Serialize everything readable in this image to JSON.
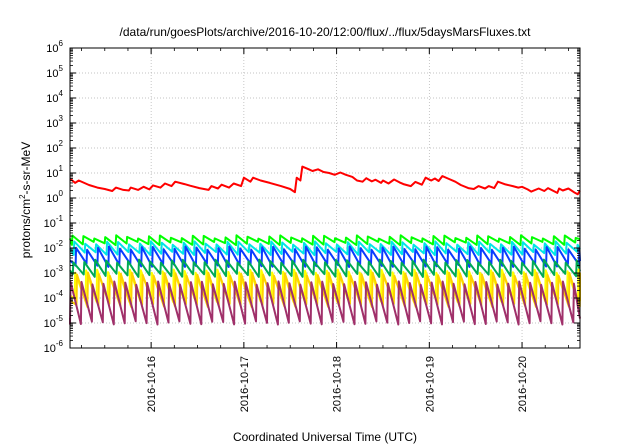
{
  "chart_data": {
    "type": "line",
    "title": "/data/run/goesPlots/archive/2016-10-20/12:00/flux/../flux/5daysMarsFluxes.txt",
    "xlabel": "Coordinated Universal Time (UTC)",
    "ylabel": {
      "base": "protons/cm",
      "sup": "2",
      "rest": "-s-sr-MeV"
    },
    "y_scale": "log",
    "ylim": [
      1e-06,
      1000000.0
    ],
    "y_ticks": [
      {
        "value": 1e-06,
        "base": "10",
        "exp": "-6"
      },
      {
        "value": 1e-05,
        "base": "10",
        "exp": "-5"
      },
      {
        "value": 0.0001,
        "base": "10",
        "exp": "-4"
      },
      {
        "value": 0.001,
        "base": "10",
        "exp": "-3"
      },
      {
        "value": 0.01,
        "base": "10",
        "exp": "-2"
      },
      {
        "value": 0.1,
        "base": "10",
        "exp": "-1"
      },
      {
        "value": 1,
        "base": "10",
        "exp": "0"
      },
      {
        "value": 10,
        "base": "10",
        "exp": "1"
      },
      {
        "value": 100,
        "base": "10",
        "exp": "2"
      },
      {
        "value": 1000.0,
        "base": "10",
        "exp": "3"
      },
      {
        "value": 10000.0,
        "base": "10",
        "exp": "4"
      },
      {
        "value": 100000.0,
        "base": "10",
        "exp": "5"
      },
      {
        "value": 1000000.0,
        "base": "10",
        "exp": "6"
      }
    ],
    "xlim": [
      "2016-10-15T03:00",
      "2016-10-20T15:00"
    ],
    "x_ticks": [
      "2016-10-16",
      "2016-10-17",
      "2016-10-18",
      "2016-10-19",
      "2016-10-20"
    ],
    "grid": true,
    "series": [
      {
        "color": "#ff0000",
        "x_unit": "days since 2016-10-15T00:00",
        "points": [
          [
            0.125,
            6.0
          ],
          [
            0.18,
            4.0
          ],
          [
            0.22,
            5.0
          ],
          [
            0.33,
            3.3
          ],
          [
            0.42,
            2.6
          ],
          [
            0.5,
            2.3
          ],
          [
            0.58,
            1.9
          ],
          [
            0.62,
            2.6
          ],
          [
            0.7,
            2.1
          ],
          [
            0.76,
            2.0
          ],
          [
            0.78,
            2.6
          ],
          [
            0.86,
            2.1
          ],
          [
            0.92,
            2.8
          ],
          [
            0.98,
            2.2
          ],
          [
            1.02,
            3.2
          ],
          [
            1.1,
            2.6
          ],
          [
            1.15,
            3.8
          ],
          [
            1.22,
            3.0
          ],
          [
            1.26,
            4.5
          ],
          [
            1.36,
            3.6
          ],
          [
            1.42,
            3.1
          ],
          [
            1.52,
            2.5
          ],
          [
            1.62,
            2.1
          ],
          [
            1.65,
            3.0
          ],
          [
            1.72,
            2.4
          ],
          [
            1.76,
            3.4
          ],
          [
            1.84,
            2.6
          ],
          [
            1.89,
            3.8
          ],
          [
            1.97,
            3.0
          ],
          [
            2.0,
            6.5
          ],
          [
            2.07,
            4.5
          ],
          [
            2.1,
            6.5
          ],
          [
            2.18,
            5.0
          ],
          [
            2.28,
            4.0
          ],
          [
            2.4,
            3.0
          ],
          [
            2.5,
            2.3
          ],
          [
            2.55,
            1.7
          ],
          [
            2.57,
            6.5
          ],
          [
            2.61,
            5.0
          ],
          [
            2.63,
            18.0
          ],
          [
            2.7,
            14.0
          ],
          [
            2.74,
            12.0
          ],
          [
            2.8,
            14.0
          ],
          [
            2.86,
            11.0
          ],
          [
            2.92,
            10.0
          ],
          [
            2.98,
            8.5
          ],
          [
            3.04,
            10.5
          ],
          [
            3.1,
            8.5
          ],
          [
            3.17,
            7.0
          ],
          [
            3.22,
            5.0
          ],
          [
            3.28,
            4.5
          ],
          [
            3.32,
            6.2
          ],
          [
            3.38,
            4.6
          ],
          [
            3.42,
            5.4
          ],
          [
            3.48,
            4.0
          ],
          [
            3.5,
            5.0
          ],
          [
            3.56,
            3.8
          ],
          [
            3.62,
            5.5
          ],
          [
            3.68,
            4.2
          ],
          [
            3.72,
            3.6
          ],
          [
            3.8,
            3.0
          ],
          [
            3.85,
            4.4
          ],
          [
            3.92,
            3.4
          ],
          [
            3.96,
            6.5
          ],
          [
            4.02,
            5.0
          ],
          [
            4.06,
            6.0
          ],
          [
            4.1,
            4.8
          ],
          [
            4.14,
            7.5
          ],
          [
            4.2,
            6.0
          ],
          [
            4.28,
            4.5
          ],
          [
            4.34,
            3.3
          ],
          [
            4.42,
            2.5
          ],
          [
            4.48,
            2.3
          ],
          [
            4.53,
            3.0
          ],
          [
            4.6,
            2.4
          ],
          [
            4.64,
            3.0
          ],
          [
            4.7,
            2.5
          ],
          [
            4.74,
            4.5
          ],
          [
            4.82,
            3.5
          ],
          [
            4.9,
            3.0
          ],
          [
            4.96,
            2.6
          ],
          [
            5.0,
            2.8
          ],
          [
            5.06,
            2.2
          ],
          [
            5.1,
            1.8
          ],
          [
            5.18,
            2.4
          ],
          [
            5.24,
            1.9
          ],
          [
            5.28,
            2.5
          ],
          [
            5.33,
            2.0
          ],
          [
            5.38,
            1.6
          ],
          [
            5.4,
            2.4
          ],
          [
            5.44,
            2.0
          ],
          [
            5.5,
            2.4
          ],
          [
            5.56,
            1.7
          ],
          [
            5.6,
            1.4
          ],
          [
            5.625,
            2.0
          ]
        ]
      },
      {
        "color": "#00ff00",
        "sawtooth": {
          "start": 0.125,
          "end": 5.625,
          "period": 0.118,
          "phase": 0.02,
          "high": 0.028,
          "low": 0.015
        }
      },
      {
        "color": "#00e6e6",
        "sawtooth": {
          "start": 0.125,
          "end": 5.625,
          "period": 0.118,
          "phase": 0.04,
          "high": 0.016,
          "low": 0.006
        }
      },
      {
        "color": "#0a3cff",
        "sawtooth": {
          "start": 0.125,
          "end": 5.625,
          "period": 0.118,
          "phase": 0.06,
          "high": 0.01,
          "low": 0.002
        }
      },
      {
        "color": "#00aa55",
        "sawtooth": {
          "start": 0.125,
          "end": 5.625,
          "period": 0.118,
          "phase": 0.03,
          "high": 0.003,
          "low": 0.0008
        }
      },
      {
        "color": "#ffff00",
        "sawtooth": {
          "start": 0.125,
          "end": 5.625,
          "period": 0.118,
          "phase": 0.05,
          "high": 0.0012,
          "low": 8e-05
        }
      },
      {
        "color": "#ffd200",
        "sawtooth": {
          "start": 0.125,
          "end": 5.625,
          "period": 0.118,
          "phase": 0.07,
          "high": 0.0009,
          "low": 5e-05
        }
      },
      {
        "color": "#a0306a",
        "sawtooth": {
          "start": 0.125,
          "end": 5.625,
          "period": 0.118,
          "phase": 0.0,
          "high": 0.0004,
          "low": 1e-05
        }
      }
    ]
  }
}
